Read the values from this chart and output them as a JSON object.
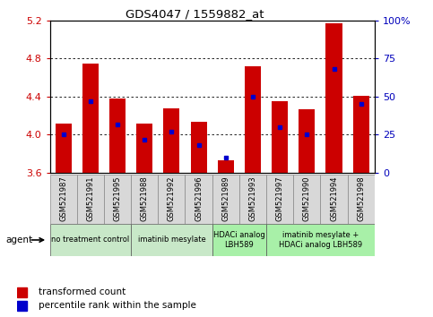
{
  "title": "GDS4047 / 1559882_at",
  "samples": [
    "GSM521987",
    "GSM521991",
    "GSM521995",
    "GSM521988",
    "GSM521992",
    "GSM521996",
    "GSM521989",
    "GSM521993",
    "GSM521997",
    "GSM521990",
    "GSM521994",
    "GSM521998"
  ],
  "red_values": [
    4.12,
    4.75,
    4.38,
    4.12,
    4.28,
    4.14,
    3.73,
    4.72,
    4.35,
    4.27,
    5.17,
    4.41
  ],
  "blue_values": [
    25,
    47,
    32,
    22,
    27,
    18,
    10,
    50,
    30,
    25,
    68,
    45
  ],
  "ymin": 3.6,
  "ymax": 5.2,
  "yticks": [
    3.6,
    4.0,
    4.4,
    4.8,
    5.2
  ],
  "y2min": 0,
  "y2max": 100,
  "y2ticks": [
    0,
    25,
    50,
    75,
    100
  ],
  "groups": [
    {
      "label": "no treatment control",
      "start": 0,
      "end": 3,
      "color": "#c8e8c8"
    },
    {
      "label": "imatinib mesylate",
      "start": 3,
      "end": 6,
      "color": "#c8e8c8"
    },
    {
      "label": "HDACi analog\nLBH589",
      "start": 6,
      "end": 8,
      "color": "#a8f0a8"
    },
    {
      "label": "imatinib mesylate +\nHDACi analog LBH589",
      "start": 8,
      "end": 12,
      "color": "#a8f0a8"
    }
  ],
  "bar_color": "#cc0000",
  "dot_color": "#0000cc",
  "bar_width": 0.6,
  "plot_bg": "#ffffff",
  "grid_color": "#000000",
  "left_label_color": "#cc0000",
  "right_label_color": "#0000bb",
  "sample_box_color": "#d8d8d8"
}
